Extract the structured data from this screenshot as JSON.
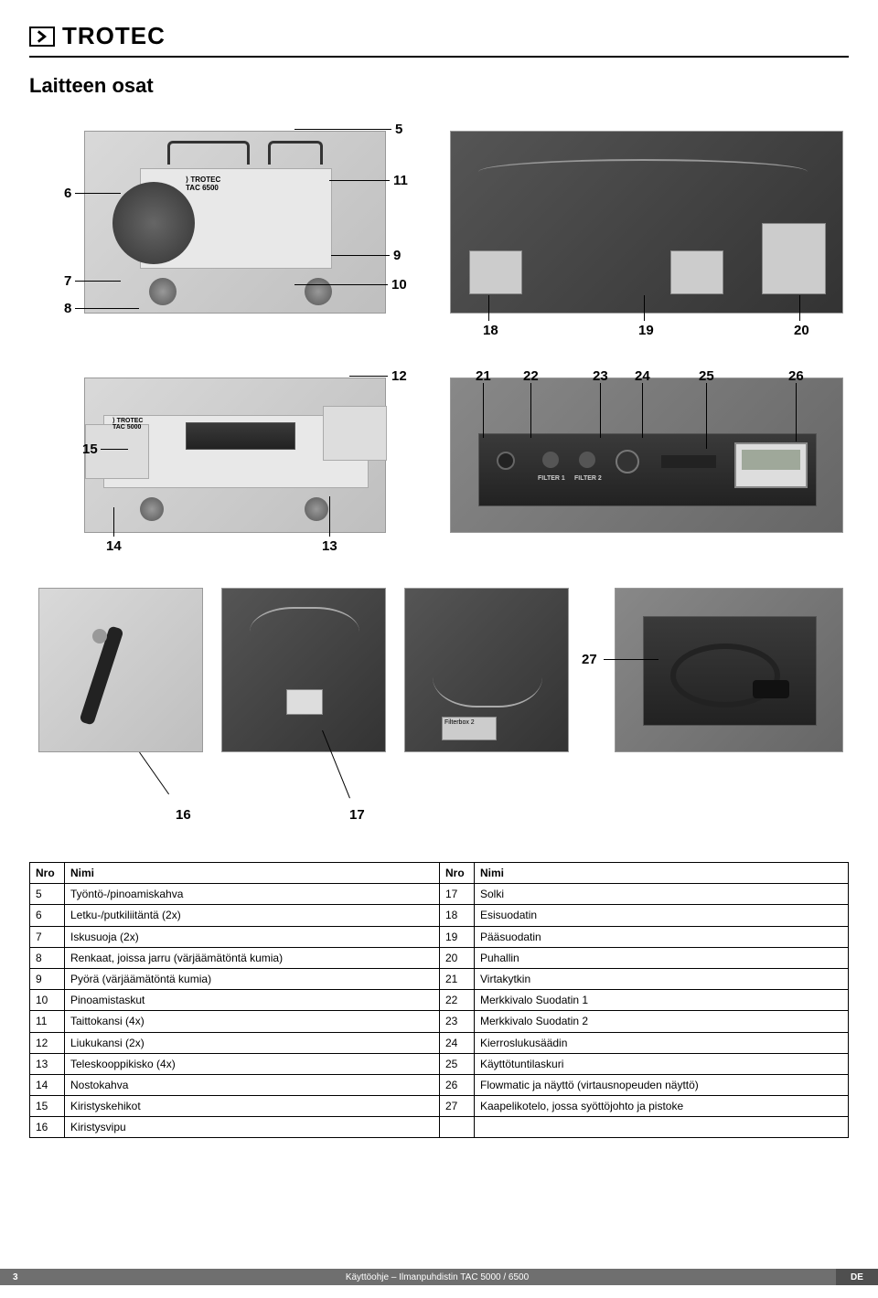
{
  "brand": "TROTEC",
  "section_title": "Laitteen osat",
  "header": {
    "nro": "Nro",
    "nimi": "Nimi"
  },
  "left_rows": [
    {
      "n": "5",
      "t": "Työntö-/pinoamiskahva"
    },
    {
      "n": "6",
      "t": "Letku-/putkiliitäntä (2x)"
    },
    {
      "n": "7",
      "t": "Iskusuoja (2x)"
    },
    {
      "n": "8",
      "t": "Renkaat, joissa jarru (värjäämätöntä kumia)"
    },
    {
      "n": "9",
      "t": "Pyörä (värjäämätöntä kumia)"
    },
    {
      "n": "10",
      "t": "Pinoamistaskut"
    },
    {
      "n": "11",
      "t": "Taittokansi (4x)"
    },
    {
      "n": "12",
      "t": "Liukukansi (2x)"
    },
    {
      "n": "13",
      "t": "Teleskooppikisko (4x)"
    },
    {
      "n": "14",
      "t": "Nostokahva"
    },
    {
      "n": "15",
      "t": "Kiristyskehikot"
    },
    {
      "n": "16",
      "t": "Kiristysvipu"
    }
  ],
  "right_rows": [
    {
      "n": "17",
      "t": "Solki"
    },
    {
      "n": "18",
      "t": "Esisuodatin"
    },
    {
      "n": "19",
      "t": "Pääsuodatin"
    },
    {
      "n": "20",
      "t": "Puhallin"
    },
    {
      "n": "21",
      "t": "Virtakytkin"
    },
    {
      "n": "22",
      "t": "Merkkivalo Suodatin 1"
    },
    {
      "n": "23",
      "t": "Merkkivalo Suodatin 2"
    },
    {
      "n": "24",
      "t": "Kierroslukusäädin"
    },
    {
      "n": "25",
      "t": "Käyttötuntilaskuri"
    },
    {
      "n": "26",
      "t": "Flowmatic ja näyttö (virtausnopeuden näyttö)"
    },
    {
      "n": "27",
      "t": "Kaapelikotelo, jossa syöttöjohto ja pistoke"
    },
    {
      "n": "",
      "t": ""
    }
  ],
  "callouts_row1_left": [
    "5",
    "11",
    "6",
    "9",
    "7",
    "10",
    "8"
  ],
  "callouts_row1_right": [
    "18",
    "19",
    "20"
  ],
  "callouts_row2_left": [
    "12",
    "15",
    "14",
    "13"
  ],
  "callouts_row2_right": [
    "21",
    "22",
    "23",
    "24",
    "25",
    "26"
  ],
  "callouts_row3_left": [
    "16",
    "17"
  ],
  "callouts_row3_right": [
    "27"
  ],
  "footer": {
    "page": "3",
    "title": "Käyttöohje – Ilmanpuhdistin TAC 5000 / 6500",
    "lang": "DE"
  },
  "colors": {
    "rule": "#000000",
    "footer_bg": "#6f6f6f",
    "footer_lang_bg": "#4f4f4f"
  }
}
